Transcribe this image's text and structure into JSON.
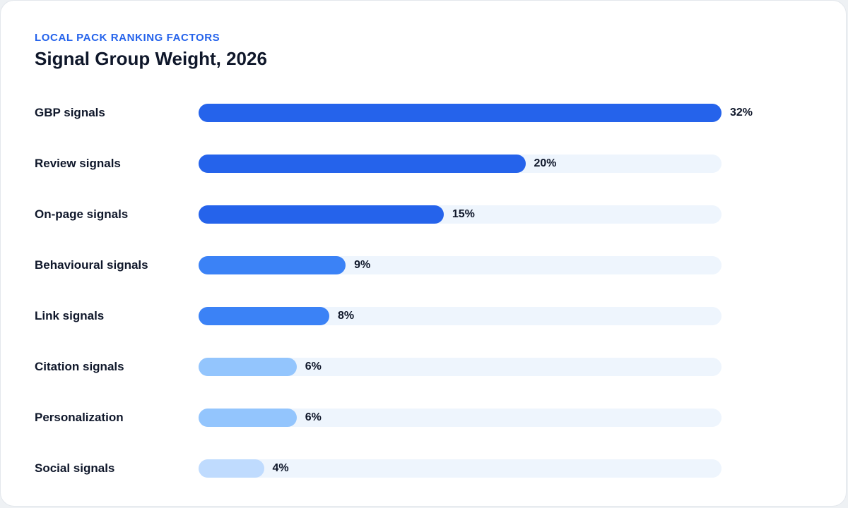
{
  "header": {
    "eyebrow": "LOCAL PACK RANKING FACTORS",
    "title": "Signal Group Weight, 2026"
  },
  "colors": {
    "accent": "#2563eb",
    "track": "#eef5fd",
    "text": "#0f172a"
  },
  "chart_data": {
    "type": "bar",
    "orientation": "horizontal",
    "title": "Signal Group Weight, 2026",
    "categories": [
      "GBP signals",
      "Review signals",
      "On-page signals",
      "Behavioural signals",
      "Link signals",
      "Citation signals",
      "Personalization",
      "Social signals"
    ],
    "values": [
      32,
      20,
      15,
      9,
      8,
      6,
      6,
      4
    ],
    "value_labels": [
      "32%",
      "20%",
      "15%",
      "9%",
      "8%",
      "6%",
      "6%",
      "4%"
    ],
    "bar_colors": [
      "#2563eb",
      "#2563eb",
      "#2563eb",
      "#3b82f6",
      "#3b82f6",
      "#93c5fd",
      "#93c5fd",
      "#bfdbfe"
    ],
    "xlim": [
      0,
      32
    ],
    "grid": false,
    "legend": "none"
  }
}
